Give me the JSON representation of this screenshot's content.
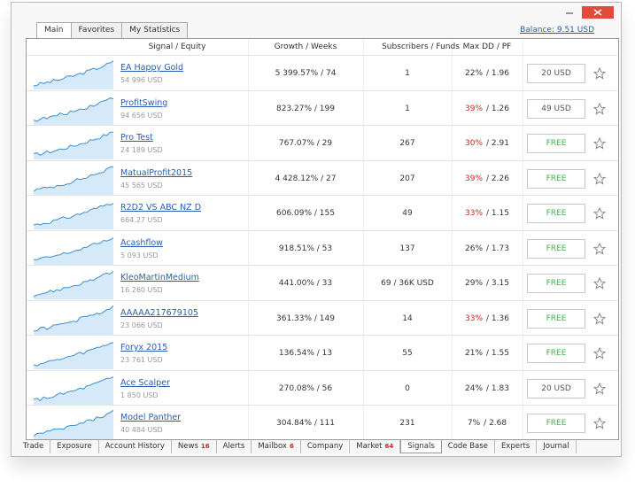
{
  "window": {
    "tabs": [
      "Main",
      "Favorites",
      "My Statistics"
    ],
    "balance": "Balance: 9.51 USD"
  },
  "table": {
    "columns": [
      "Signal / Equity",
      "Growth / Weeks",
      "Subscribers / Funds",
      "Max DD / PF"
    ],
    "rows": [
      {
        "name": "EA Happy Gold",
        "equity": "54 996 USD",
        "growth": "5 399.57% / 74",
        "subscribers": "1",
        "max_dd": "22%",
        "pf": "/ 1.96",
        "dd_color": "#333333",
        "button": "20 USD",
        "button_color": "#555555"
      },
      {
        "name": "ProfitSwing",
        "equity": "94 656 USD",
        "growth": "823.27% / 199",
        "subscribers": "1",
        "max_dd": "39%",
        "pf": "/ 1.26",
        "dd_color": "#d42020",
        "button": "49 USD",
        "button_color": "#555555"
      },
      {
        "name": "Pro Test",
        "equity": "24 189 USD",
        "growth": "767.07% / 29",
        "subscribers": "267",
        "max_dd": "30%",
        "pf": "/ 2.91",
        "dd_color": "#d42020",
        "button": "FREE",
        "button_color": "#3cb44a"
      },
      {
        "name": "MatualProfit2015",
        "equity": "45 565 USD",
        "growth": "4 428.12% / 27",
        "subscribers": "207",
        "max_dd": "39%",
        "pf": "/ 2.26",
        "dd_color": "#d42020",
        "button": "FREE",
        "button_color": "#3cb44a"
      },
      {
        "name": "R2D2 VS ABC NZ D",
        "equity": "664.27 USD",
        "growth": "606.09% / 155",
        "subscribers": "49",
        "max_dd": "33%",
        "pf": "/ 1.15",
        "dd_color": "#d42020",
        "button": "FREE",
        "button_color": "#3cb44a"
      },
      {
        "name": "Acashflow",
        "equity": "5 093 USD",
        "growth": "918.51% / 53",
        "subscribers": "137",
        "max_dd": "26%",
        "pf": "/ 1.73",
        "dd_color": "#333333",
        "button": "FREE",
        "button_color": "#3cb44a"
      },
      {
        "name": "KleoMartinMedium",
        "equity": "16 260 USD",
        "growth": "441.00% / 33",
        "subscribers": "69 / 36K USD",
        "max_dd": "29%",
        "pf": "/ 3.15",
        "dd_color": "#333333",
        "button": "FREE",
        "button_color": "#3cb44a"
      },
      {
        "name": "AAAAA217679105",
        "equity": "23 066 USD",
        "growth": "361.33% / 149",
        "subscribers": "14",
        "max_dd": "33%",
        "pf": "/ 1.36",
        "dd_color": "#d42020",
        "button": "FREE",
        "button_color": "#3cb44a"
      },
      {
        "name": "Foryx 2015",
        "equity": "23 761 USD",
        "growth": "136.54% / 13",
        "subscribers": "55",
        "max_dd": "21%",
        "pf": "/ 1.55",
        "dd_color": "#333333",
        "button": "FREE",
        "button_color": "#3cb44a"
      },
      {
        "name": "Ace Scalper",
        "equity": "1 850 USD",
        "growth": "270.08% / 56",
        "subscribers": "0",
        "max_dd": "24%",
        "pf": "/ 1.83",
        "dd_color": "#333333",
        "button": "20 USD",
        "button_color": "#555555"
      },
      {
        "name": "Model Panther",
        "equity": "40 484 USD",
        "growth": "304.84% / 111",
        "subscribers": "231",
        "max_dd": "7%",
        "pf": "/ 2.68",
        "dd_color": "#333333",
        "button": "FREE",
        "button_color": "#3cb44a"
      }
    ]
  },
  "bottom_tabs": [
    {
      "label": "Trade"
    },
    {
      "label": "Exposure"
    },
    {
      "label": "Account History"
    },
    {
      "label": "News",
      "badge": "16"
    },
    {
      "label": "Alerts"
    },
    {
      "label": "Mailbox",
      "badge": "6"
    },
    {
      "label": "Company"
    },
    {
      "label": "Market",
      "badge": "64"
    },
    {
      "label": "Signals",
      "active": true
    },
    {
      "label": "Code Base"
    },
    {
      "label": "Experts"
    },
    {
      "label": "Journal"
    }
  ]
}
